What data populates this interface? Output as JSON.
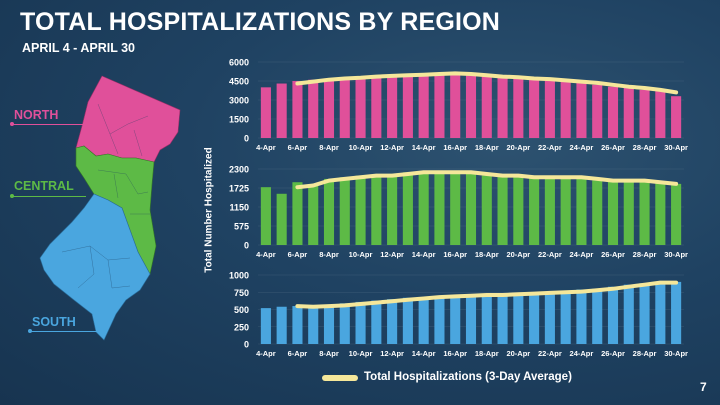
{
  "title": "TOTAL HOSPITALIZATIONS BY REGION",
  "subtitle": "APRIL 4 - APRIL 30",
  "regions": {
    "north": {
      "label": "NORTH",
      "color": "#e0509a"
    },
    "central": {
      "label": "CENTRAL",
      "color": "#5dba46"
    },
    "south": {
      "label": "SOUTH",
      "color": "#4aa6df"
    }
  },
  "y_axis_label": "Total Number Hospitalized",
  "legend_label": "Total Hospitalizations (3-Day Average)",
  "page_number": "7",
  "chart_data": [
    {
      "type": "bar",
      "name": "north",
      "title": "",
      "color": "#e0509a",
      "line_color": "#f5e79a",
      "categories": [
        "4-Apr",
        "5-Apr",
        "6-Apr",
        "7-Apr",
        "8-Apr",
        "9-Apr",
        "10-Apr",
        "11-Apr",
        "12-Apr",
        "13-Apr",
        "14-Apr",
        "15-Apr",
        "16-Apr",
        "17-Apr",
        "18-Apr",
        "19-Apr",
        "20-Apr",
        "21-Apr",
        "22-Apr",
        "23-Apr",
        "24-Apr",
        "25-Apr",
        "26-Apr",
        "27-Apr",
        "28-Apr",
        "29-Apr",
        "30-Apr"
      ],
      "tick_labels": [
        "4-Apr",
        "6-Apr",
        "8-Apr",
        "10-Apr",
        "12-Apr",
        "14-Apr",
        "16-Apr",
        "18-Apr",
        "20-Apr",
        "22-Apr",
        "24-Apr",
        "26-Apr",
        "28-Apr",
        "30-Apr"
      ],
      "values": [
        4000,
        4300,
        4500,
        4600,
        4700,
        4750,
        4850,
        4900,
        4950,
        5000,
        5050,
        5150,
        5100,
        5000,
        4850,
        4800,
        4700,
        4650,
        4550,
        4500,
        4350,
        4200,
        4050,
        3950,
        3800,
        3700,
        3300
      ],
      "line": [
        null,
        null,
        4300,
        4450,
        4600,
        4700,
        4750,
        4850,
        4900,
        4950,
        5000,
        5050,
        5100,
        5050,
        4950,
        4850,
        4800,
        4700,
        4650,
        4550,
        4450,
        4350,
        4200,
        4050,
        3950,
        3800,
        3600
      ],
      "yticks": [
        0,
        1500,
        3000,
        4500,
        6000
      ],
      "ylim": [
        0,
        6000
      ]
    },
    {
      "type": "bar",
      "name": "central",
      "title": "",
      "color": "#5dba46",
      "line_color": "#f5e79a",
      "categories": [
        "4-Apr",
        "5-Apr",
        "6-Apr",
        "7-Apr",
        "8-Apr",
        "9-Apr",
        "10-Apr",
        "11-Apr",
        "12-Apr",
        "13-Apr",
        "14-Apr",
        "15-Apr",
        "16-Apr",
        "17-Apr",
        "18-Apr",
        "19-Apr",
        "20-Apr",
        "21-Apr",
        "22-Apr",
        "23-Apr",
        "24-Apr",
        "25-Apr",
        "26-Apr",
        "27-Apr",
        "28-Apr",
        "29-Apr",
        "30-Apr"
      ],
      "tick_labels": [
        "4-Apr",
        "6-Apr",
        "8-Apr",
        "10-Apr",
        "12-Apr",
        "14-Apr",
        "16-Apr",
        "18-Apr",
        "20-Apr",
        "22-Apr",
        "24-Apr",
        "26-Apr",
        "28-Apr",
        "30-Apr"
      ],
      "values": [
        1750,
        1550,
        1900,
        1800,
        2000,
        2050,
        2100,
        2100,
        2150,
        2200,
        2200,
        2250,
        2200,
        2150,
        2100,
        2100,
        2050,
        2050,
        2000,
        2050,
        2000,
        1950,
        1950,
        1950,
        1900,
        1900,
        1850
      ],
      "line": [
        null,
        null,
        1750,
        1800,
        1950,
        2000,
        2050,
        2100,
        2100,
        2150,
        2200,
        2200,
        2200,
        2200,
        2150,
        2100,
        2100,
        2050,
        2050,
        2050,
        2050,
        2000,
        1950,
        1950,
        1950,
        1900,
        1850
      ],
      "yticks": [
        0,
        575,
        1150,
        1725,
        2300
      ],
      "ylim": [
        0,
        2300
      ]
    },
    {
      "type": "bar",
      "name": "south",
      "title": "",
      "color": "#4aa6df",
      "line_color": "#f5e79a",
      "categories": [
        "4-Apr",
        "5-Apr",
        "6-Apr",
        "7-Apr",
        "8-Apr",
        "9-Apr",
        "10-Apr",
        "11-Apr",
        "12-Apr",
        "13-Apr",
        "14-Apr",
        "15-Apr",
        "16-Apr",
        "17-Apr",
        "18-Apr",
        "19-Apr",
        "20-Apr",
        "21-Apr",
        "22-Apr",
        "23-Apr",
        "24-Apr",
        "25-Apr",
        "26-Apr",
        "27-Apr",
        "28-Apr",
        "29-Apr",
        "30-Apr"
      ],
      "tick_labels": [
        "4-Apr",
        "6-Apr",
        "8-Apr",
        "10-Apr",
        "12-Apr",
        "14-Apr",
        "16-Apr",
        "18-Apr",
        "20-Apr",
        "22-Apr",
        "24-Apr",
        "26-Apr",
        "28-Apr",
        "30-Apr"
      ],
      "values": [
        520,
        540,
        550,
        560,
        570,
        590,
        610,
        630,
        650,
        670,
        680,
        690,
        700,
        710,
        710,
        720,
        730,
        740,
        750,
        760,
        790,
        800,
        830,
        860,
        880,
        900,
        900
      ],
      "line": [
        null,
        null,
        550,
        540,
        550,
        560,
        580,
        600,
        620,
        640,
        660,
        680,
        690,
        700,
        710,
        710,
        720,
        730,
        740,
        750,
        760,
        780,
        800,
        830,
        860,
        890,
        890
      ],
      "yticks": [
        0,
        250,
        500,
        750,
        1000
      ],
      "ylim": [
        0,
        1000
      ]
    }
  ]
}
